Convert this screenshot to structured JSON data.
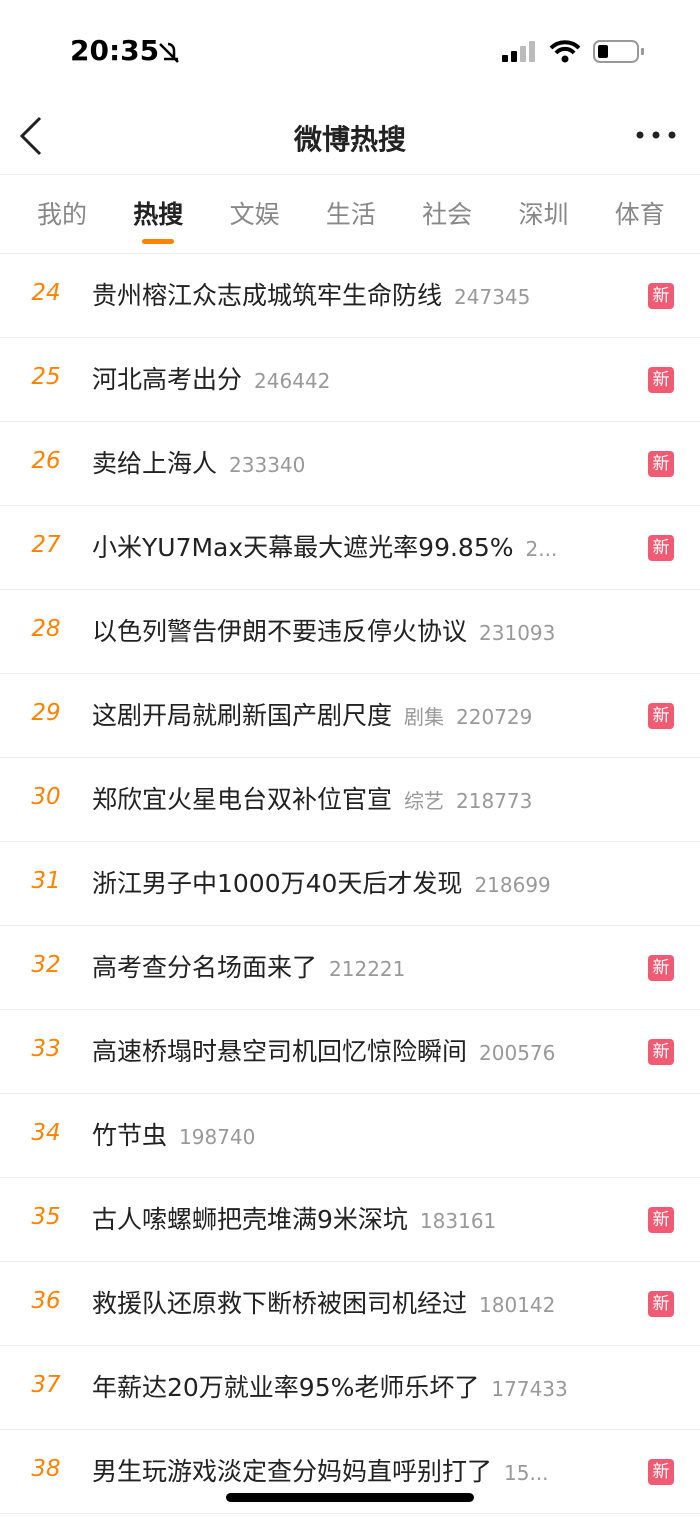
{
  "status_bar": {
    "time": "20:35"
  },
  "header": {
    "title": "微博热搜"
  },
  "tabs": [
    "我的",
    "热搜",
    "文娱",
    "生活",
    "社会",
    "深圳",
    "体育"
  ],
  "active_tab": 1,
  "list": [
    {
      "rank": 24,
      "title": "贵州榕江众志成城筑牢生命防线",
      "count": 247345,
      "badge": "新"
    },
    {
      "rank": 25,
      "title": "河北高考出分",
      "count": 246442,
      "badge": "新"
    },
    {
      "rank": 26,
      "title": "卖给上海人",
      "count": 233340,
      "badge": "新"
    },
    {
      "rank": 27,
      "title": "小米YU7Max天幕最大遮光率99.85%",
      "count": "2...",
      "badge": "新"
    },
    {
      "rank": 28,
      "title": "以色列警告伊朗不要违反停火协议",
      "count": 231093
    },
    {
      "rank": 29,
      "title": "这剧开局就刷新国产剧尺度",
      "tag": "剧集",
      "count": 220729,
      "badge": "新"
    },
    {
      "rank": 30,
      "title": "郑欣宜火星电台双补位官宣",
      "tag": "综艺",
      "count": 218773
    },
    {
      "rank": 31,
      "title": "浙江男子中1000万40天后才发现",
      "count": 218699
    },
    {
      "rank": 32,
      "title": "高考查分名场面来了",
      "count": 212221,
      "badge": "新"
    },
    {
      "rank": 33,
      "title": "高速桥塌时悬空司机回忆惊险瞬间",
      "count": 200576,
      "badge": "新"
    },
    {
      "rank": 34,
      "title": "竹节虫",
      "count": 198740
    },
    {
      "rank": 35,
      "title": "古人嗦螺蛳把壳堆满9米深坑",
      "count": 183161,
      "badge": "新"
    },
    {
      "rank": 36,
      "title": "救援队还原救下断桥被困司机经过",
      "count": 180142,
      "badge": "新"
    },
    {
      "rank": 37,
      "title": "年薪达20万就业率95%老师乐坏了",
      "count": 177433
    },
    {
      "rank": 38,
      "title": "男生玩游戏淡定查分妈妈直呼别打了",
      "count": "15...",
      "badge": "新"
    }
  ]
}
